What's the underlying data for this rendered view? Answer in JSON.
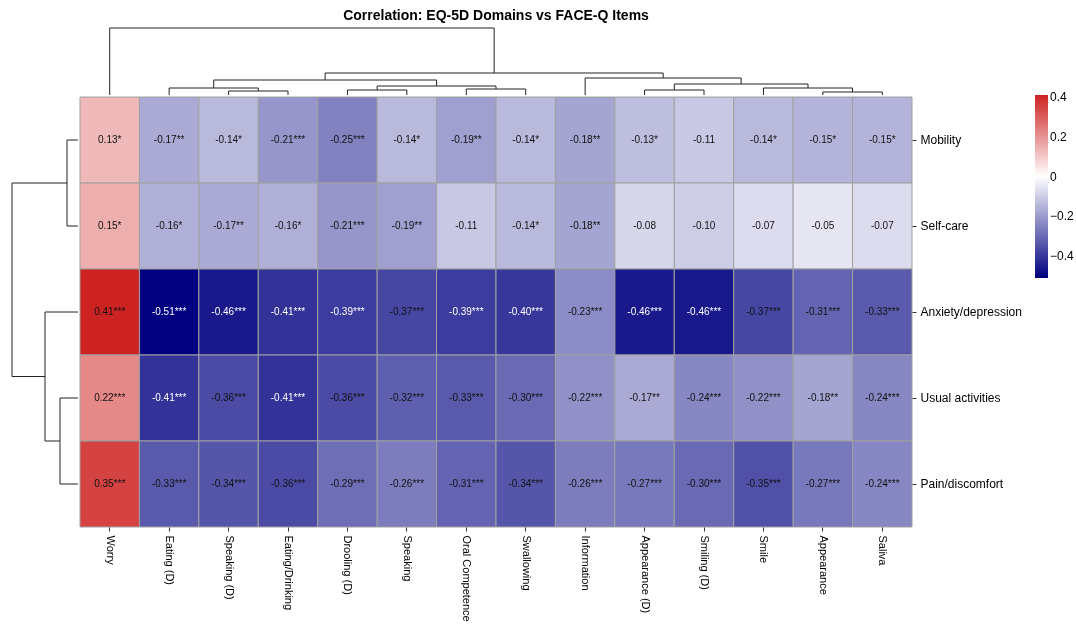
{
  "chart_data": {
    "type": "heatmap",
    "title": "Correlation: EQ-5D Domains vs FACE-Q Items",
    "categories": [
      "Worry",
      "Eating (D)",
      "Speaking (D)",
      "Eating/Drinking",
      "Drooling (D)",
      "Speaking",
      "Oral Competence",
      "Swallowing",
      "Information",
      "Appearance (D)",
      "Smiling (D)",
      "Smile",
      "Appearance",
      "Saliva"
    ],
    "y_categories": [
      "Mobility",
      "Self-care",
      "Anxiety/depression",
      "Usual activities",
      "Pain/discomfort"
    ],
    "cells": [
      [
        0.13,
        -0.17,
        -0.14,
        -0.21,
        -0.25,
        -0.14,
        -0.19,
        -0.14,
        -0.18,
        -0.13,
        -0.11,
        -0.14,
        -0.15,
        -0.15
      ],
      [
        0.15,
        -0.16,
        -0.17,
        -0.16,
        -0.21,
        -0.19,
        -0.11,
        -0.14,
        -0.18,
        -0.08,
        -0.1,
        -0.07,
        -0.05,
        -0.07
      ],
      [
        0.41,
        -0.51,
        -0.46,
        -0.41,
        -0.39,
        -0.37,
        -0.39,
        -0.4,
        -0.23,
        -0.46,
        -0.46,
        -0.37,
        -0.31,
        -0.33
      ],
      [
        0.22,
        -0.41,
        -0.36,
        -0.41,
        -0.36,
        -0.32,
        -0.33,
        -0.3,
        -0.22,
        -0.17,
        -0.24,
        -0.22,
        -0.18,
        -0.24
      ],
      [
        0.35,
        -0.33,
        -0.34,
        -0.36,
        -0.29,
        -0.26,
        -0.31,
        -0.34,
        -0.26,
        -0.27,
        -0.3,
        -0.35,
        -0.27,
        -0.24
      ]
    ],
    "cell_labels": [
      [
        "0.13*",
        "-0.17**",
        "-0.14*",
        "-0.21***",
        "-0.25***",
        "-0.14*",
        "-0.19**",
        "-0.14*",
        "-0.18**",
        "-0.13*",
        "-0.11",
        "-0.14*",
        "-0.15*",
        "-0.15*"
      ],
      [
        "0.15*",
        "-0.16*",
        "-0.17**",
        "-0.16*",
        "-0.21***",
        "-0.19**",
        "-0.11",
        "-0.14*",
        "-0.18**",
        "-0.08",
        "-0.10",
        "-0.07",
        "-0.05",
        "-0.07"
      ],
      [
        "0.41***",
        "-0.51***",
        "-0.46***",
        "-0.41***",
        "-0.39***",
        "-0.37***",
        "-0.39***",
        "-0.40***",
        "-0.23***",
        "-0.46***",
        "-0.46***",
        "-0.37***",
        "-0.31***",
        "-0.33***"
      ],
      [
        "0.22***",
        "-0.41***",
        "-0.36***",
        "-0.41***",
        "-0.36***",
        "-0.32***",
        "-0.33***",
        "-0.30***",
        "-0.22***",
        "-0.17**",
        "-0.24***",
        "-0.22***",
        "-0.18**",
        "-0.24***"
      ],
      [
        "0.35***",
        "-0.33***",
        "-0.34***",
        "-0.36***",
        "-0.29***",
        "-0.26***",
        "-0.31***",
        "-0.34***",
        "-0.26***",
        "-0.27***",
        "-0.30***",
        "-0.35***",
        "-0.27***",
        "-0.24***"
      ]
    ],
    "clim": [
      -0.51,
      0.41
    ],
    "cticks": [
      -0.4,
      -0.2,
      0,
      0.2,
      0.4
    ]
  }
}
